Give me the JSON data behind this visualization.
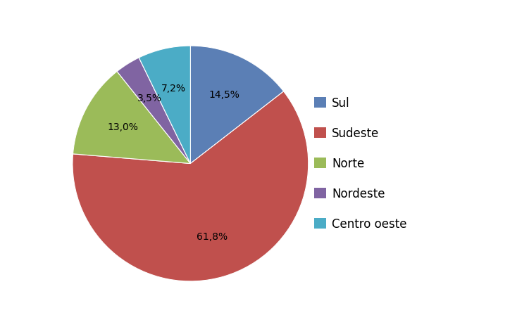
{
  "labels": [
    "Sul",
    "Sudeste",
    "Norte",
    "Nordeste",
    "Centro oeste"
  ],
  "values": [
    14.5,
    61.8,
    13.0,
    3.5,
    7.2
  ],
  "colors": [
    "#5B7FB5",
    "#C0504D",
    "#9BBB59",
    "#8064A2",
    "#4BACC6"
  ],
  "legend_labels": [
    "Sul",
    "Sudeste",
    "Norte",
    "Nordeste",
    "Centro oeste"
  ],
  "background_color": "#ffffff",
  "label_fontsize": 10,
  "legend_fontsize": 12,
  "pct_labels": [
    "14,5%",
    "61,8%",
    "13,0%",
    "3,5%",
    "7,2%"
  ]
}
